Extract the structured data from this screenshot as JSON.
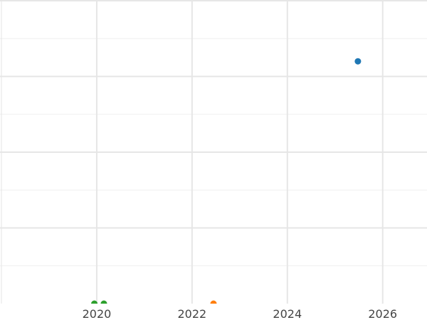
{
  "chart_data": {
    "type": "scatter",
    "title": "",
    "xlabel": "",
    "ylabel": "",
    "xlim": [
      2017.97,
      2026.93
    ],
    "ylim": [
      0,
      8
    ],
    "x_ticks": [
      "2020",
      "2022",
      "2024",
      "2026"
    ],
    "x_tick_values": [
      2020,
      2022,
      2024,
      2026
    ],
    "y_grid_values": [
      0,
      1,
      2,
      3,
      4,
      5,
      6,
      7,
      8
    ],
    "grid": true,
    "series": [
      {
        "color": "#1f77b4",
        "points": [
          {
            "x": 2025.48,
            "y": 6.4
          }
        ]
      },
      {
        "color": "#ff7f0e",
        "points": [
          {
            "x": 2022.45,
            "y": 0
          }
        ]
      },
      {
        "color": "#2ca02c",
        "points": [
          {
            "x": 2019.95,
            "y": 0
          },
          {
            "x": 2020.15,
            "y": 0
          }
        ]
      }
    ]
  }
}
